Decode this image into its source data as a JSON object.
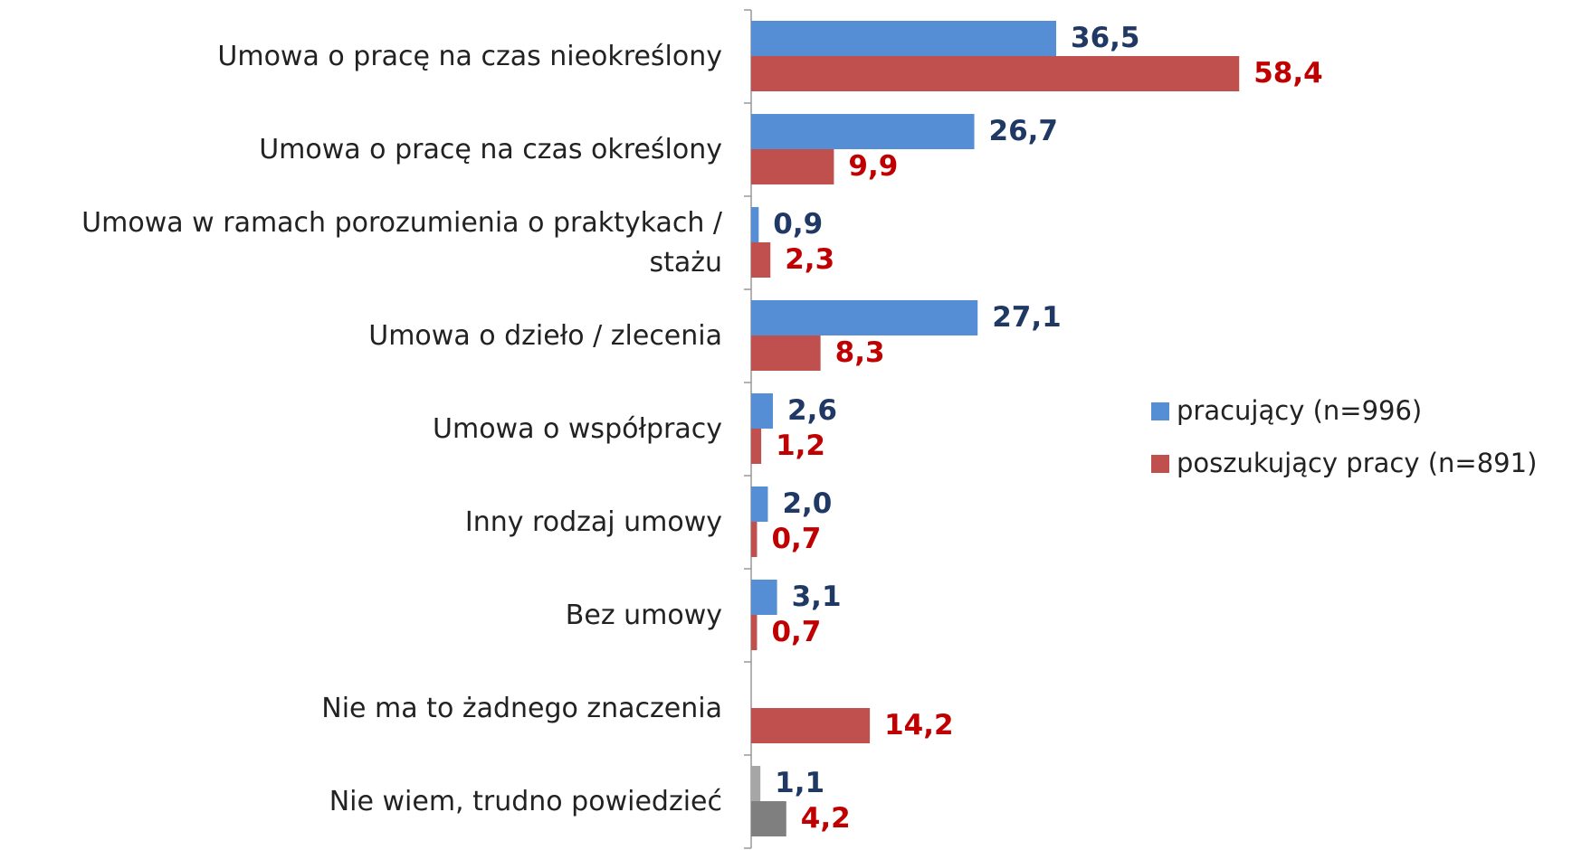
{
  "chart_data": {
    "type": "hbar",
    "categories": [
      "Umowa o pracę na czas nieokreślony",
      "Umowa o pracę na czas określony",
      "Umowa w ramach porozumienia o praktykach / stażu",
      "Umowa  o dzieło / zlecenia",
      "Umowa o współpracy",
      "Inny rodzaj umowy",
      "Bez umowy",
      "Nie ma to żadnego znaczenia",
      "Nie wiem, trudno powiedzieć"
    ],
    "series": [
      {
        "name": "pracujący (n=996)",
        "color": "#558ed5",
        "label_color": "#1f3864",
        "point_colors": {
          "8": "#a6a6a6"
        },
        "values": [
          36.5,
          26.7,
          0.9,
          27.1,
          2.6,
          2.0,
          3.1,
          null,
          1.1
        ],
        "value_labels": [
          "36,5",
          "26,7",
          "0,9",
          "27,1",
          "2,6",
          "2,0",
          "3,1",
          null,
          "1,1"
        ]
      },
      {
        "name": "poszukujący pracy (n=891)",
        "color": "#c0504d",
        "label_color": "#c00000",
        "point_colors": {
          "8": "#7f7f7f"
        },
        "values": [
          58.4,
          9.9,
          2.3,
          8.3,
          1.2,
          0.7,
          0.7,
          14.2,
          4.2
        ],
        "value_labels": [
          "58,4",
          "9,9",
          "2,3",
          "8,3",
          "1,2",
          "0,7",
          "0,7",
          "14,2",
          "4,2"
        ]
      }
    ],
    "xlim": [
      0,
      60
    ],
    "legend": "right"
  }
}
